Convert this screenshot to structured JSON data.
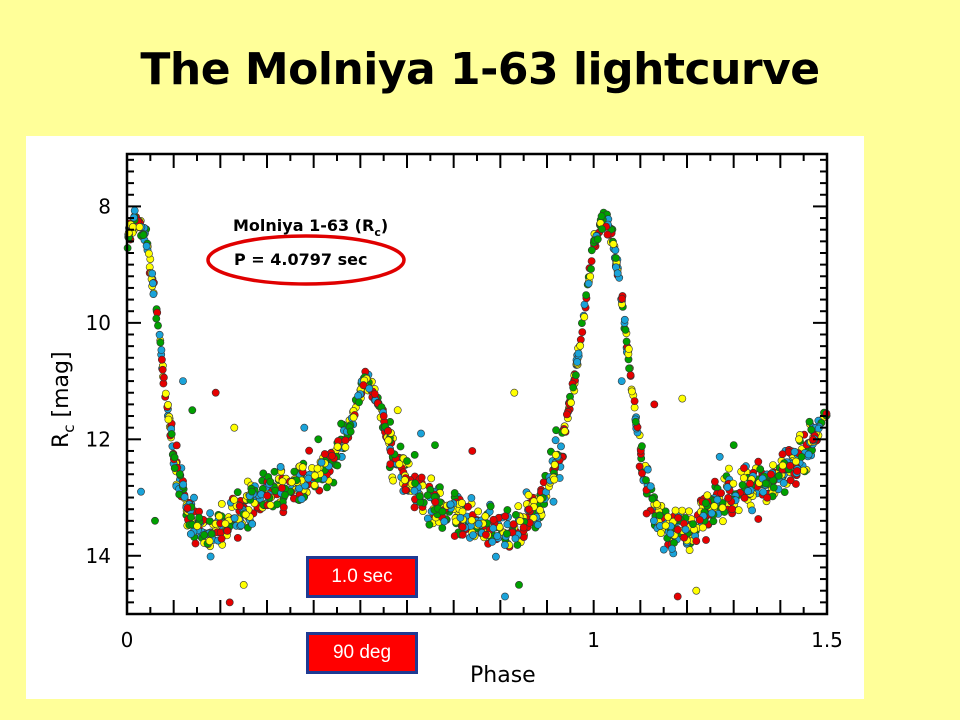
{
  "slide": {
    "title": "The Molniya 1-63 lightcurve"
  },
  "boxes": {
    "duration": "1.0 sec",
    "angle": "90 deg"
  },
  "chart_data": {
    "type": "scatter",
    "xlabel": "Phase",
    "ylabel_main": "R",
    "ylabel_sub": "c",
    "ylabel_unit": "[mag]",
    "xlim": [
      0,
      1.5
    ],
    "ylim": [
      15.0,
      7.1
    ],
    "y_inverted": true,
    "x_ticks": [
      0,
      1,
      1.5
    ],
    "y_ticks": [
      8,
      10,
      12,
      14
    ],
    "x_tick_labels": [
      "0",
      "1",
      "1.5"
    ],
    "y_tick_labels": [
      "8",
      "10",
      "12",
      "14"
    ],
    "legend": {
      "object": "Molniya 1-63 (R",
      "object_sub": "c",
      "object_end": ")",
      "period": "P = 4.0797 sec"
    },
    "period_seconds": 4.0797,
    "point_colors": [
      "#1aa3d9",
      "#00a000",
      "#e60000",
      "#ffff00"
    ],
    "highlight_color": "#e00000",
    "mean_curve": [
      [
        0.0,
        8.6
      ],
      [
        0.02,
        8.2
      ],
      [
        0.04,
        8.5
      ],
      [
        0.06,
        9.6
      ],
      [
        0.08,
        11.0
      ],
      [
        0.1,
        12.3
      ],
      [
        0.13,
        13.2
      ],
      [
        0.16,
        13.6
      ],
      [
        0.2,
        13.6
      ],
      [
        0.25,
        13.2
      ],
      [
        0.3,
        12.9
      ],
      [
        0.36,
        12.8
      ],
      [
        0.42,
        12.5
      ],
      [
        0.47,
        12.0
      ],
      [
        0.51,
        10.9
      ],
      [
        0.54,
        11.4
      ],
      [
        0.57,
        12.3
      ],
      [
        0.62,
        12.9
      ],
      [
        0.68,
        13.2
      ],
      [
        0.75,
        13.5
      ],
      [
        0.82,
        13.6
      ],
      [
        0.88,
        13.2
      ],
      [
        0.93,
        12.2
      ],
      [
        0.96,
        10.9
      ],
      [
        0.98,
        9.8
      ],
      [
        1.0,
        8.7
      ],
      [
        1.02,
        8.2
      ],
      [
        1.04,
        8.5
      ],
      [
        1.06,
        9.6
      ],
      [
        1.08,
        11.0
      ],
      [
        1.1,
        12.3
      ],
      [
        1.13,
        13.2
      ],
      [
        1.16,
        13.6
      ],
      [
        1.2,
        13.6
      ],
      [
        1.25,
        13.2
      ],
      [
        1.3,
        12.9
      ],
      [
        1.36,
        12.8
      ],
      [
        1.42,
        12.5
      ],
      [
        1.47,
        12.0
      ],
      [
        1.5,
        11.5
      ]
    ],
    "scatter_half_width": 0.45,
    "outlier_points": [
      [
        0.12,
        11.0
      ],
      [
        0.14,
        11.5
      ],
      [
        0.19,
        11.2
      ],
      [
        0.23,
        11.8
      ],
      [
        0.38,
        11.8
      ],
      [
        0.41,
        12.0
      ],
      [
        0.55,
        11.6
      ],
      [
        0.58,
        11.5
      ],
      [
        0.63,
        11.9
      ],
      [
        0.66,
        12.1
      ],
      [
        0.74,
        12.2
      ],
      [
        0.83,
        11.2
      ],
      [
        1.06,
        11.0
      ],
      [
        1.09,
        11.7
      ],
      [
        1.13,
        11.4
      ],
      [
        1.19,
        11.3
      ],
      [
        1.27,
        12.3
      ],
      [
        1.3,
        12.1
      ],
      [
        1.38,
        12.6
      ],
      [
        1.44,
        12.0
      ],
      [
        0.03,
        12.9
      ],
      [
        0.06,
        13.4
      ],
      [
        0.22,
        14.8
      ],
      [
        0.25,
        14.5
      ],
      [
        0.81,
        14.7
      ],
      [
        0.84,
        14.5
      ],
      [
        1.18,
        14.7
      ],
      [
        1.22,
        14.6
      ]
    ]
  }
}
